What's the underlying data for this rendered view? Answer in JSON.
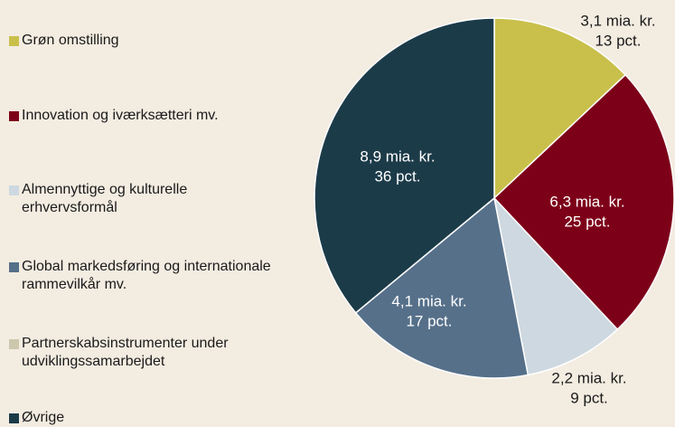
{
  "chart_data": {
    "type": "pie",
    "categories": [
      "Grøn omstilling",
      "Innovation og iværksætteri mv.",
      "Almennyttige og kulturelle erhvervsformål",
      "Global markedsføring og internationale rammevilkår mv.",
      "Partnerskabsinstrumenter under udviklingssamarbejdet",
      "Øvrige"
    ],
    "values": [
      13,
      25,
      9,
      17,
      0,
      36
    ],
    "value_labels": [
      "13 pct.",
      "25 pct.",
      "9 pct.",
      "17 pct.",
      null,
      "36 pct."
    ],
    "amount_labels": [
      "3,1 mia. kr.",
      "6,3 mia. kr.",
      "2,2 mia. kr.",
      "4,1 mia. kr.",
      null,
      "8,9 mia. kr."
    ],
    "colors": [
      "#c9c04b",
      "#7d0019",
      "#cdd8e0",
      "#56708a",
      "#cdc7ae",
      "#1c3b49"
    ],
    "legend": "left"
  }
}
